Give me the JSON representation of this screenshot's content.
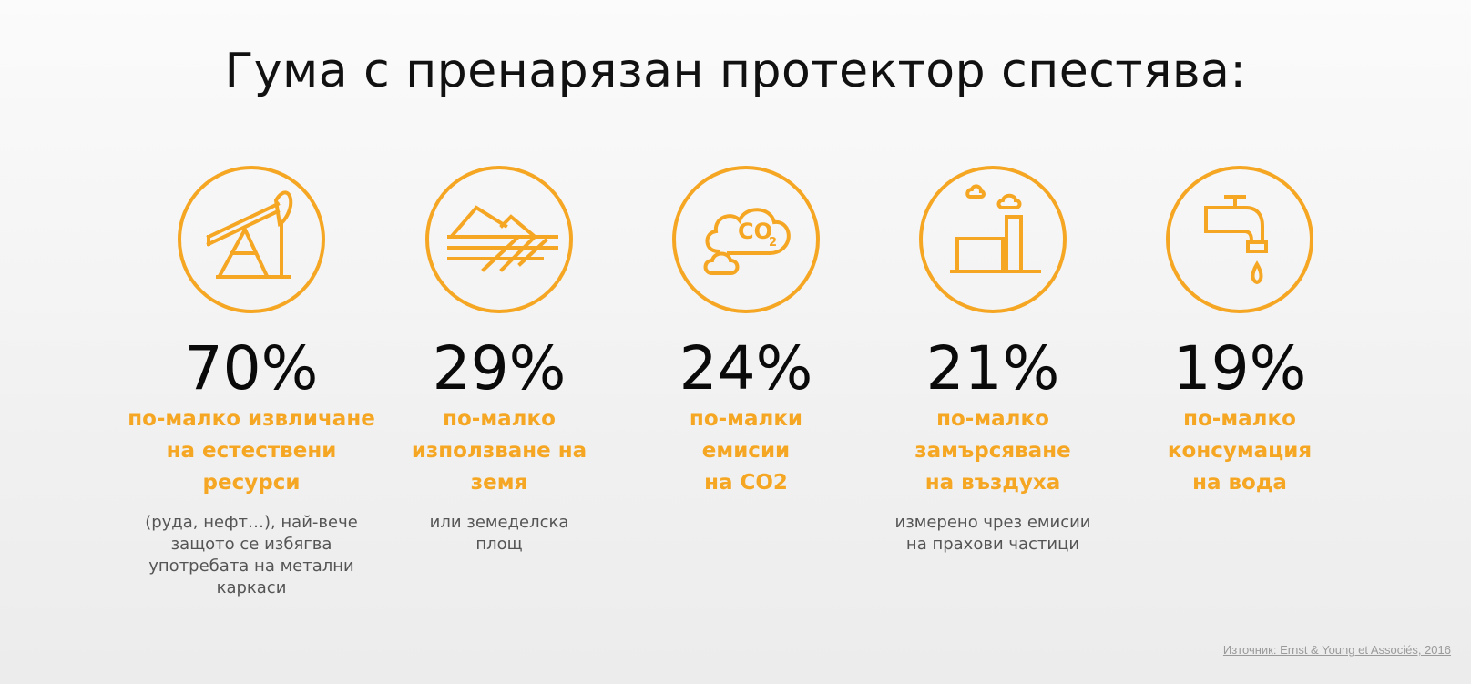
{
  "title": "Гума с пренарязан протектор спестява:",
  "items": [
    {
      "icon": "oil-pump-icon",
      "value": "70%",
      "label": "по-малко извличане\nна естествени\nресурси",
      "note": "(руда, нефт…), най-вече\nзащото се избягва\nупотребата на метални\nкаркаси"
    },
    {
      "icon": "land-field-icon",
      "value": "29%",
      "label": "по-малко\nизползване на\nземя",
      "note": "или земеделска\nплощ"
    },
    {
      "icon": "co2-cloud-icon",
      "value": "24%",
      "label": "по-малки\nемисии\nна CO2",
      "note": "",
      "icon_text": "CO",
      "icon_sub": "2"
    },
    {
      "icon": "factory-icon",
      "value": "21%",
      "label": "по-малко\nзамърсяване\nна въздуха",
      "note": "измерено чрез емисии\nна прахови частици"
    },
    {
      "icon": "water-tap-icon",
      "value": "19%",
      "label": "по-малко\nконсумация\nна вода",
      "note": ""
    }
  ],
  "source": "Източник: Ernst & Young et Associés, 2016",
  "colors": {
    "accent": "#f5a623",
    "text": "#0a0a0a",
    "note": "#555555"
  }
}
